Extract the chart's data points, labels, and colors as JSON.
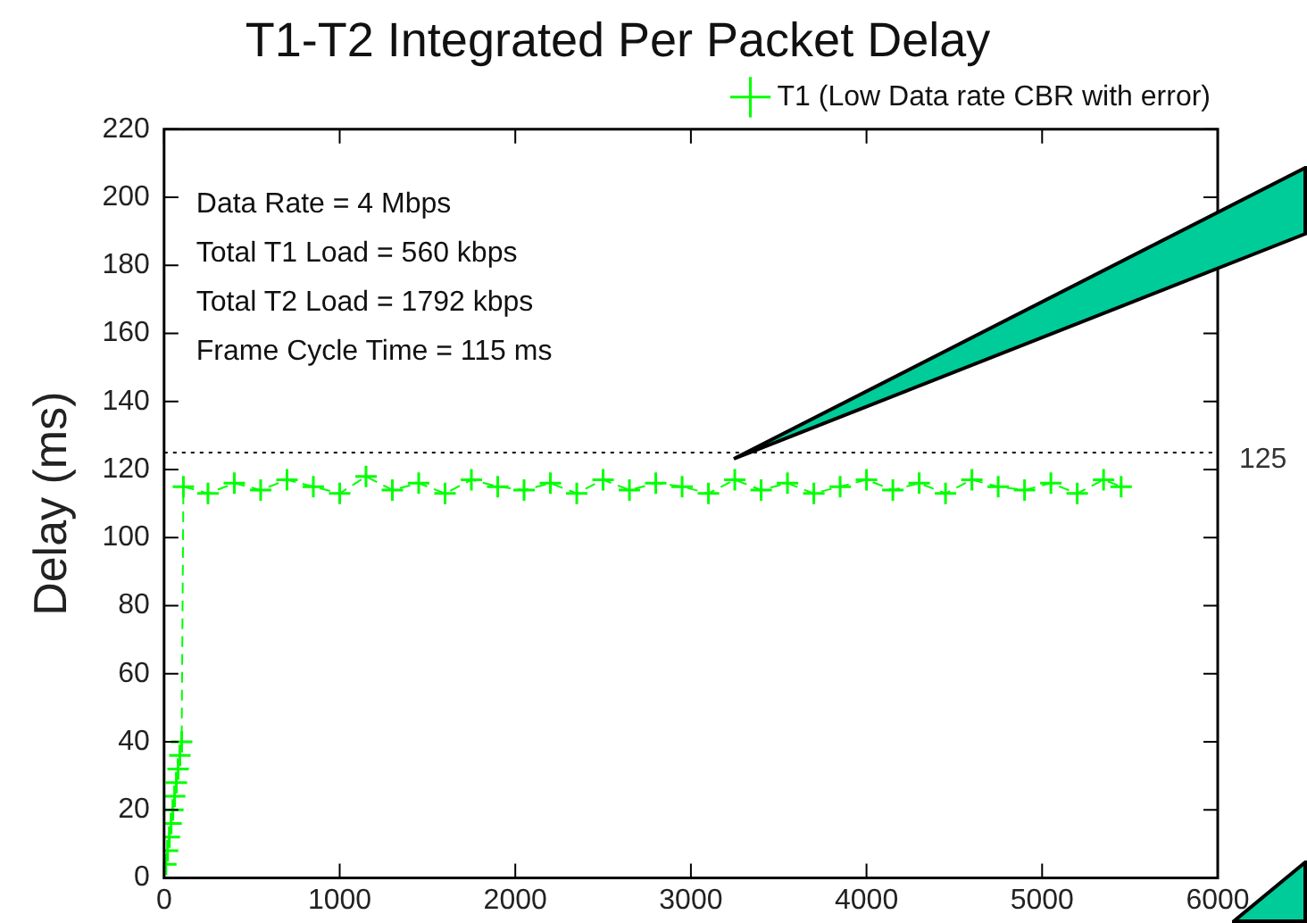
{
  "chart_data": {
    "type": "line",
    "title": "T1-T2 Integrated Per Packet Delay",
    "ylabel": "Delay (ms)",
    "xlim": [
      0,
      6000
    ],
    "xticks": [
      0,
      1000,
      2000,
      3000,
      4000,
      5000,
      6000
    ],
    "ylim": [
      0,
      220
    ],
    "yticks": [
      0,
      20,
      40,
      60,
      80,
      100,
      120,
      140,
      160,
      180,
      200,
      220
    ],
    "grid": false,
    "legend": "top right",
    "marker": "cross",
    "line_style": "dashed",
    "annotations": [
      "Data Rate = 4 Mbps",
      "Total T1 Load = 560 kbps",
      "Total T2 Load = 1792 kbps",
      "Frame Cycle Time = 115 ms"
    ],
    "ref_lines": [
      {
        "axis": "y",
        "value": 125,
        "label": "125",
        "color": "#000000",
        "line_style": "dotted"
      }
    ],
    "series": [
      {
        "name": "T1 (Low Data rate CBR with error)",
        "color": "#00ff00",
        "x": [
          0,
          10,
          20,
          30,
          40,
          50,
          60,
          70,
          80,
          90,
          100,
          110,
          250,
          400,
          550,
          700,
          850,
          1000,
          1150,
          1300,
          1450,
          1600,
          1750,
          1900,
          2050,
          2200,
          2350,
          2500,
          2650,
          2800,
          2950,
          3100,
          3250,
          3400,
          3550,
          3700,
          3850,
          4000,
          4150,
          4300,
          4450,
          4600,
          4750,
          4900,
          5050,
          5200,
          5350,
          5450
        ],
        "values": [
          0,
          4,
          8,
          12,
          16,
          20,
          24,
          28,
          32,
          36,
          40,
          115,
          113,
          116,
          114,
          117,
          115,
          113,
          118,
          114,
          116,
          113,
          117,
          115,
          114,
          116,
          113,
          117,
          114,
          116,
          115,
          113,
          117,
          114,
          116,
          113,
          115,
          117,
          114,
          116,
          113,
          117,
          115,
          114,
          116,
          113,
          117,
          115
        ]
      }
    ]
  }
}
